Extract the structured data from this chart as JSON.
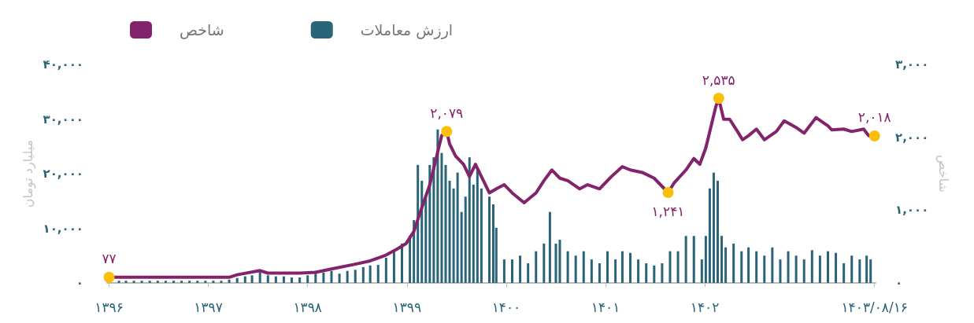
{
  "chart_data": {
    "type": "line",
    "ylabel": "میلیارد تومان",
    "y2label": "شاخص",
    "legend": "top left",
    "grid": false,
    "line_style": "solid",
    "xlim": [
      1395.98,
      1403.72
    ],
    "xticks": [
      {
        "value": 1396,
        "label": "۱۳۹۶"
      },
      {
        "value": 1397,
        "label": "۱۳۹۷"
      },
      {
        "value": 1398,
        "label": "۱۳۹۸"
      },
      {
        "value": 1399,
        "label": "۱۳۹۹"
      },
      {
        "value": 1400,
        "label": "۱۴۰۰"
      },
      {
        "value": 1401,
        "label": "۱۴۰۱"
      },
      {
        "value": 1402,
        "label": "۱۴۰۲"
      },
      {
        "value": 1403.71,
        "label": "۱۴۰۳/۰۸/۱۶"
      }
    ],
    "ylim": [
      0,
      40000
    ],
    "yticks": [
      {
        "value": 0,
        "label": "۰"
      },
      {
        "value": 10000,
        "label": "۱۰,۰۰۰"
      },
      {
        "value": 20000,
        "label": "۲۰,۰۰۰"
      },
      {
        "value": 30000,
        "label": "۳۰,۰۰۰"
      },
      {
        "value": 40000,
        "label": "۴۰,۰۰۰"
      }
    ],
    "y2lim": [
      0,
      3000
    ],
    "y2ticks": [
      {
        "value": 0,
        "label": "۰"
      },
      {
        "value": 1000,
        "label": "۱,۰۰۰"
      },
      {
        "value": 2000,
        "label": "۲,۰۰۰"
      },
      {
        "value": 3000,
        "label": "۳,۰۰۰"
      }
    ],
    "series": [
      {
        "name": "شاخص",
        "axis": "y2",
        "color": "#83236b",
        "x": [
          1396.0,
          1397.21,
          1397.29,
          1397.52,
          1397.6,
          1397.92,
          1398.08,
          1398.24,
          1398.48,
          1398.63,
          1398.79,
          1398.91,
          1398.99,
          1399.07,
          1399.15,
          1399.23,
          1399.31,
          1399.35,
          1399.4,
          1399.43,
          1399.49,
          1399.57,
          1399.63,
          1399.69,
          1399.75,
          1399.83,
          1399.9,
          1399.98,
          1400.06,
          1400.18,
          1400.3,
          1400.38,
          1400.46,
          1400.54,
          1400.62,
          1400.74,
          1400.82,
          1400.94,
          1401.06,
          1401.17,
          1401.25,
          1401.37,
          1401.49,
          1401.63,
          1401.69,
          1401.81,
          1401.89,
          1401.95,
          1402.01,
          1402.06,
          1402.11,
          1402.14,
          1402.19,
          1402.25,
          1402.33,
          1402.38,
          1402.44,
          1402.52,
          1402.6,
          1402.72,
          1402.8,
          1402.92,
          1403.0,
          1403.12,
          1403.24,
          1403.28,
          1403.4,
          1403.48,
          1403.6,
          1403.65,
          1403.71
        ],
        "values": [
          77,
          77,
          112,
          169,
          135,
          135,
          146,
          191,
          258,
          303,
          382,
          472,
          539,
          708,
          1034,
          1348,
          1798,
          2022,
          2079,
          1910,
          1742,
          1629,
          1461,
          1629,
          1461,
          1236,
          1292,
          1348,
          1236,
          1101,
          1236,
          1404,
          1551,
          1438,
          1404,
          1292,
          1348,
          1292,
          1461,
          1596,
          1551,
          1517,
          1438,
          1241,
          1371,
          1551,
          1708,
          1629,
          1854,
          2135,
          2416,
          2535,
          2247,
          2247,
          2079,
          1966,
          2022,
          2112,
          1966,
          2079,
          2225,
          2135,
          2056,
          2270,
          2157,
          2101,
          2112,
          2079,
          2112,
          2022,
          2018
        ],
        "value_labels": [
          "۷۷",
          null,
          null,
          null,
          null,
          null,
          null,
          null,
          null,
          null,
          null,
          null,
          null,
          null,
          null,
          null,
          null,
          null,
          "۲,۰۷۹",
          null,
          null,
          null,
          null,
          null,
          null,
          null,
          null,
          null,
          null,
          null,
          null,
          null,
          null,
          null,
          null,
          null,
          null,
          null,
          null,
          null,
          null,
          null,
          null,
          "۱,۲۴۱",
          null,
          null,
          null,
          null,
          null,
          null,
          null,
          "۲,۵۳۵",
          null,
          null,
          null,
          null,
          null,
          null,
          null,
          null,
          null,
          null,
          null,
          null,
          null,
          null,
          null,
          null,
          null,
          null,
          "۲,۰۱۸"
        ]
      },
      {
        "name": "ارزش معاملات",
        "type": "bar",
        "axis": "y",
        "color": "#2a6478",
        "x": [
          1396.1,
          1396.17,
          1396.25,
          1396.33,
          1396.41,
          1396.49,
          1396.57,
          1396.65,
          1396.73,
          1396.81,
          1396.89,
          1396.97,
          1397.05,
          1397.13,
          1397.21,
          1397.29,
          1397.37,
          1397.44,
          1397.52,
          1397.6,
          1397.68,
          1397.76,
          1397.84,
          1397.92,
          1398.0,
          1398.08,
          1398.16,
          1398.24,
          1398.32,
          1398.4,
          1398.48,
          1398.56,
          1398.63,
          1398.71,
          1398.79,
          1398.87,
          1398.95,
          1399.03,
          1399.07,
          1399.11,
          1399.15,
          1399.19,
          1399.23,
          1399.27,
          1399.31,
          1399.35,
          1399.39,
          1399.43,
          1399.47,
          1399.51,
          1399.55,
          1399.59,
          1399.63,
          1399.67,
          1399.71,
          1399.75,
          1399.83,
          1399.87,
          1399.9,
          1399.98,
          1400.06,
          1400.14,
          1400.22,
          1400.3,
          1400.38,
          1400.44,
          1400.5,
          1400.54,
          1400.62,
          1400.7,
          1400.78,
          1400.86,
          1400.94,
          1401.02,
          1401.1,
          1401.17,
          1401.25,
          1401.33,
          1401.41,
          1401.49,
          1401.57,
          1401.65,
          1401.73,
          1401.81,
          1401.89,
          1401.97,
          1402.01,
          1402.05,
          1402.09,
          1402.13,
          1402.17,
          1402.21,
          1402.29,
          1402.37,
          1402.44,
          1402.52,
          1402.6,
          1402.68,
          1402.76,
          1402.84,
          1402.92,
          1403.0,
          1403.08,
          1403.16,
          1403.24,
          1403.32,
          1403.4,
          1403.48,
          1403.56,
          1403.63,
          1403.67
        ],
        "values": [
          400,
          400,
          400,
          400,
          400,
          400,
          400,
          400,
          400,
          400,
          400,
          400,
          400,
          400,
          600,
          900,
          1200,
          1400,
          2200,
          1400,
          1200,
          1200,
          1000,
          1000,
          1400,
          2200,
          1900,
          2200,
          1700,
          2200,
          2400,
          2900,
          3200,
          3300,
          4600,
          5800,
          7200,
          8600,
          11500,
          21600,
          18700,
          15800,
          21600,
          23000,
          28100,
          23800,
          21600,
          18700,
          17300,
          20200,
          13000,
          15800,
          23000,
          18000,
          20900,
          17300,
          15800,
          14400,
          10100,
          4300,
          4300,
          5000,
          3600,
          5800,
          7200,
          13000,
          7200,
          7900,
          5800,
          5000,
          5800,
          4300,
          3600,
          5800,
          4300,
          5800,
          5500,
          4300,
          3600,
          3200,
          3600,
          5800,
          5800,
          8600,
          8600,
          4300,
          8600,
          17300,
          20200,
          18700,
          8600,
          6500,
          7200,
          5800,
          6500,
          5800,
          5000,
          6500,
          4300,
          5800,
          5000,
          4300,
          6000,
          5000,
          5800,
          5500,
          3600,
          5000,
          4300,
          5000,
          4300
        ]
      }
    ]
  }
}
